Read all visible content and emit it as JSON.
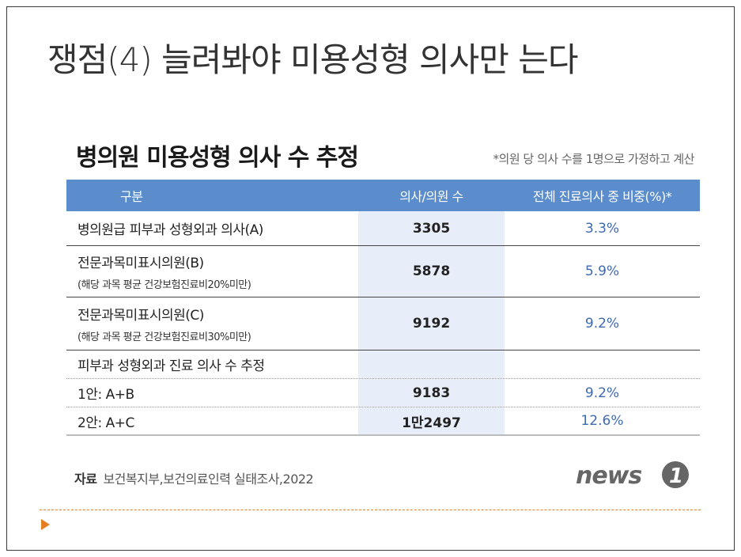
{
  "slide": {
    "title": "쟁점(4) 늘려봐야 미용성형 의사만 는다"
  },
  "infographic": {
    "title": "병의원 미용성형 의사 수 추정",
    "note": "*의원 당 의사 수를 1명으로 가정하고 계산",
    "headers": {
      "category": "구분",
      "count": "의사/의원 수",
      "share": "전체 진료의사 중 비중(%)*"
    },
    "rows": [
      {
        "label": "병의원급 피부과 성형외과 의사(A)",
        "sub": "",
        "count": "3305",
        "share": "3.3%"
      },
      {
        "label": "전문과목미표시의원(B)",
        "sub": "(해당 과목 평균 건강보험진료비20%미만)",
        "count": "5878",
        "share": "5.9%"
      },
      {
        "label": "전문과목미표시의원(C)",
        "sub": "(해당 과목 평균 건강보험진료비30%미만)",
        "count": "9192",
        "share": "9.2%"
      },
      {
        "label": "피부과 성형외과 진료 의사 수 추정",
        "sub": "",
        "count": "",
        "share": ""
      },
      {
        "label": "1안: A+B",
        "sub": "",
        "count": "9183",
        "share": "9.2%"
      },
      {
        "label": "2안: A+C",
        "sub": "",
        "count": "1만2497",
        "share": "12.6%"
      }
    ],
    "source_label": "자료",
    "source_text": "보건복지부,보건의료인력 실태조사,2022",
    "logo_text": "news1"
  },
  "colors": {
    "header_bg": "#5b8dcc",
    "count_col_bg": "#e8eef9",
    "share_text": "#3e6ab3",
    "accent": "#e67e22"
  }
}
